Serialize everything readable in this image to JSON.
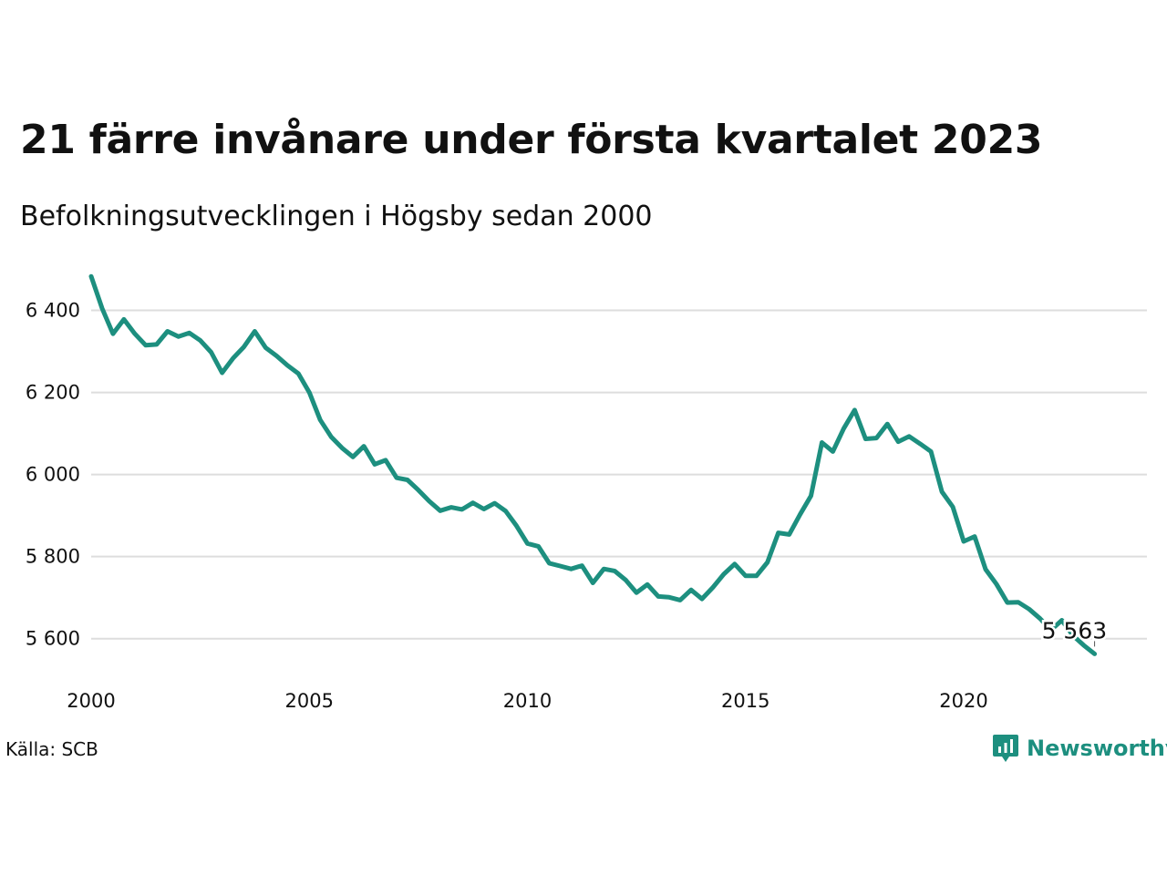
{
  "header": {
    "title": "21 färre invånare under första kvartalet 2023",
    "subtitle": "Befolkningsutvecklingen i Högsby sedan 2000"
  },
  "footer": {
    "source": "Källa: SCB",
    "brand": "Newsworthy"
  },
  "colors": {
    "line": "#1d8f7f",
    "grid": "#dddddd",
    "brand": "#1d8f7f"
  },
  "icons": {
    "brand_logo": "newsworthy-logo-icon"
  },
  "chart_data": {
    "type": "line",
    "title": "21 färre invånare under första kvartalet 2023",
    "subtitle": "Befolkningsutvecklingen i Högsby sedan 2000",
    "xlabel": "",
    "ylabel": "",
    "xlim": [
      2000,
      2024.2
    ],
    "ylim": [
      5535,
      6490
    ],
    "grid": true,
    "legend": "none",
    "x_ticks": [
      {
        "value": 2000,
        "label": "2000"
      },
      {
        "value": 2005,
        "label": "2005"
      },
      {
        "value": 2010,
        "label": "2010"
      },
      {
        "value": 2015,
        "label": "2015"
      },
      {
        "value": 2020,
        "label": "2020"
      }
    ],
    "y_ticks": [
      {
        "value": 5600,
        "label": "5 600"
      },
      {
        "value": 5800,
        "label": "5 800"
      },
      {
        "value": 6000,
        "label": "6 000"
      },
      {
        "value": 6200,
        "label": "6 200"
      },
      {
        "value": 6400,
        "label": "6 400"
      }
    ],
    "annotation": {
      "x": 2023.0,
      "y": 5563,
      "label": "5 563"
    },
    "series": [
      {
        "x": [
          2000.0,
          2000.25,
          2000.5,
          2000.75,
          2001.0,
          2001.25,
          2001.5,
          2001.75,
          2002.0,
          2002.25,
          2002.5,
          2002.75,
          2003.0,
          2003.25,
          2003.5,
          2003.75,
          2004.0,
          2004.25,
          2004.5,
          2004.75,
          2005.0,
          2005.25,
          2005.5,
          2005.75,
          2006.0,
          2006.25,
          2006.5,
          2006.75,
          2007.0,
          2007.25,
          2007.5,
          2007.75,
          2008.0,
          2008.25,
          2008.5,
          2008.75,
          2009.0,
          2009.25,
          2009.5,
          2009.75,
          2010.0,
          2010.25,
          2010.5,
          2010.75,
          2011.0,
          2011.25,
          2011.5,
          2011.75,
          2012.0,
          2012.25,
          2012.5,
          2012.75,
          2013.0,
          2013.25,
          2013.5,
          2013.75,
          2014.0,
          2014.25,
          2014.5,
          2014.75,
          2015.0,
          2015.25,
          2015.5,
          2015.75,
          2016.0,
          2016.25,
          2016.5,
          2016.75,
          2017.0,
          2017.25,
          2017.5,
          2017.75,
          2018.0,
          2018.25,
          2018.5,
          2018.75,
          2019.0,
          2019.25,
          2019.5,
          2019.75,
          2020.0,
          2020.25,
          2020.5,
          2020.75,
          2021.0,
          2021.25,
          2021.5,
          2021.75,
          2022.0,
          2022.25,
          2022.5,
          2022.75,
          2023.0
        ],
        "values": [
          6483,
          6405,
          6343,
          6378,
          6343,
          6315,
          6317,
          6349,
          6336,
          6345,
          6327,
          6298,
          6248,
          6283,
          6311,
          6349,
          6309,
          6289,
          6266,
          6246,
          6200,
          6133,
          6092,
          6065,
          6043,
          6069,
          6025,
          6035,
          5992,
          5987,
          5962,
          5935,
          5912,
          5920,
          5915,
          5931,
          5916,
          5930,
          5911,
          5875,
          5832,
          5825,
          5784,
          5777,
          5770,
          5778,
          5736,
          5770,
          5765,
          5743,
          5712,
          5732,
          5703,
          5701,
          5694,
          5719,
          5697,
          5725,
          5757,
          5782,
          5753,
          5753,
          5786,
          5858,
          5854,
          5903,
          5948,
          6078,
          6056,
          6112,
          6157,
          6087,
          6089,
          6123,
          6080,
          6093,
          6075,
          6056,
          5958,
          5921,
          5837,
          5849,
          5769,
          5733,
          5688,
          5689,
          5672,
          5649,
          5621,
          5645,
          5608,
          5584,
          5563
        ]
      }
    ]
  }
}
